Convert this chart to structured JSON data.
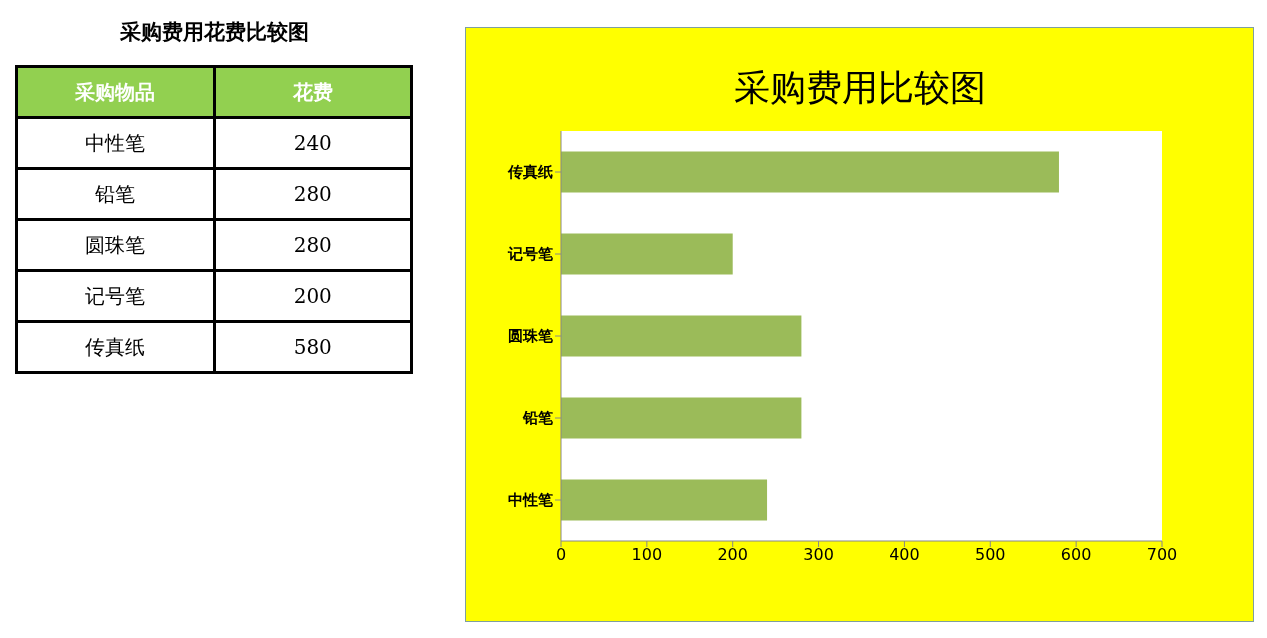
{
  "chart_data": [
    {
      "type": "other",
      "title": "采购费用花费比较图",
      "annotations": [
        "采购物品",
        "花费"
      ],
      "categories": [
        "中性笔",
        "铅笔",
        "圆珠笔",
        "记号笔",
        "传真纸"
      ],
      "values": [
        240,
        280,
        280,
        200,
        580
      ],
      "data_labels": true
    },
    {
      "type": "bar",
      "orientation": "horizontal",
      "title": "采购费用比较图",
      "categories": [
        "传真纸",
        "记号笔",
        "圆珠笔",
        "铅笔",
        "中性笔"
      ],
      "values": [
        580,
        200,
        280,
        280,
        240
      ],
      "color": "#9bbb59",
      "xlim": [
        0,
        700
      ],
      "xticks": [
        0,
        100,
        200,
        300,
        400,
        500,
        600,
        700
      ]
    }
  ]
}
